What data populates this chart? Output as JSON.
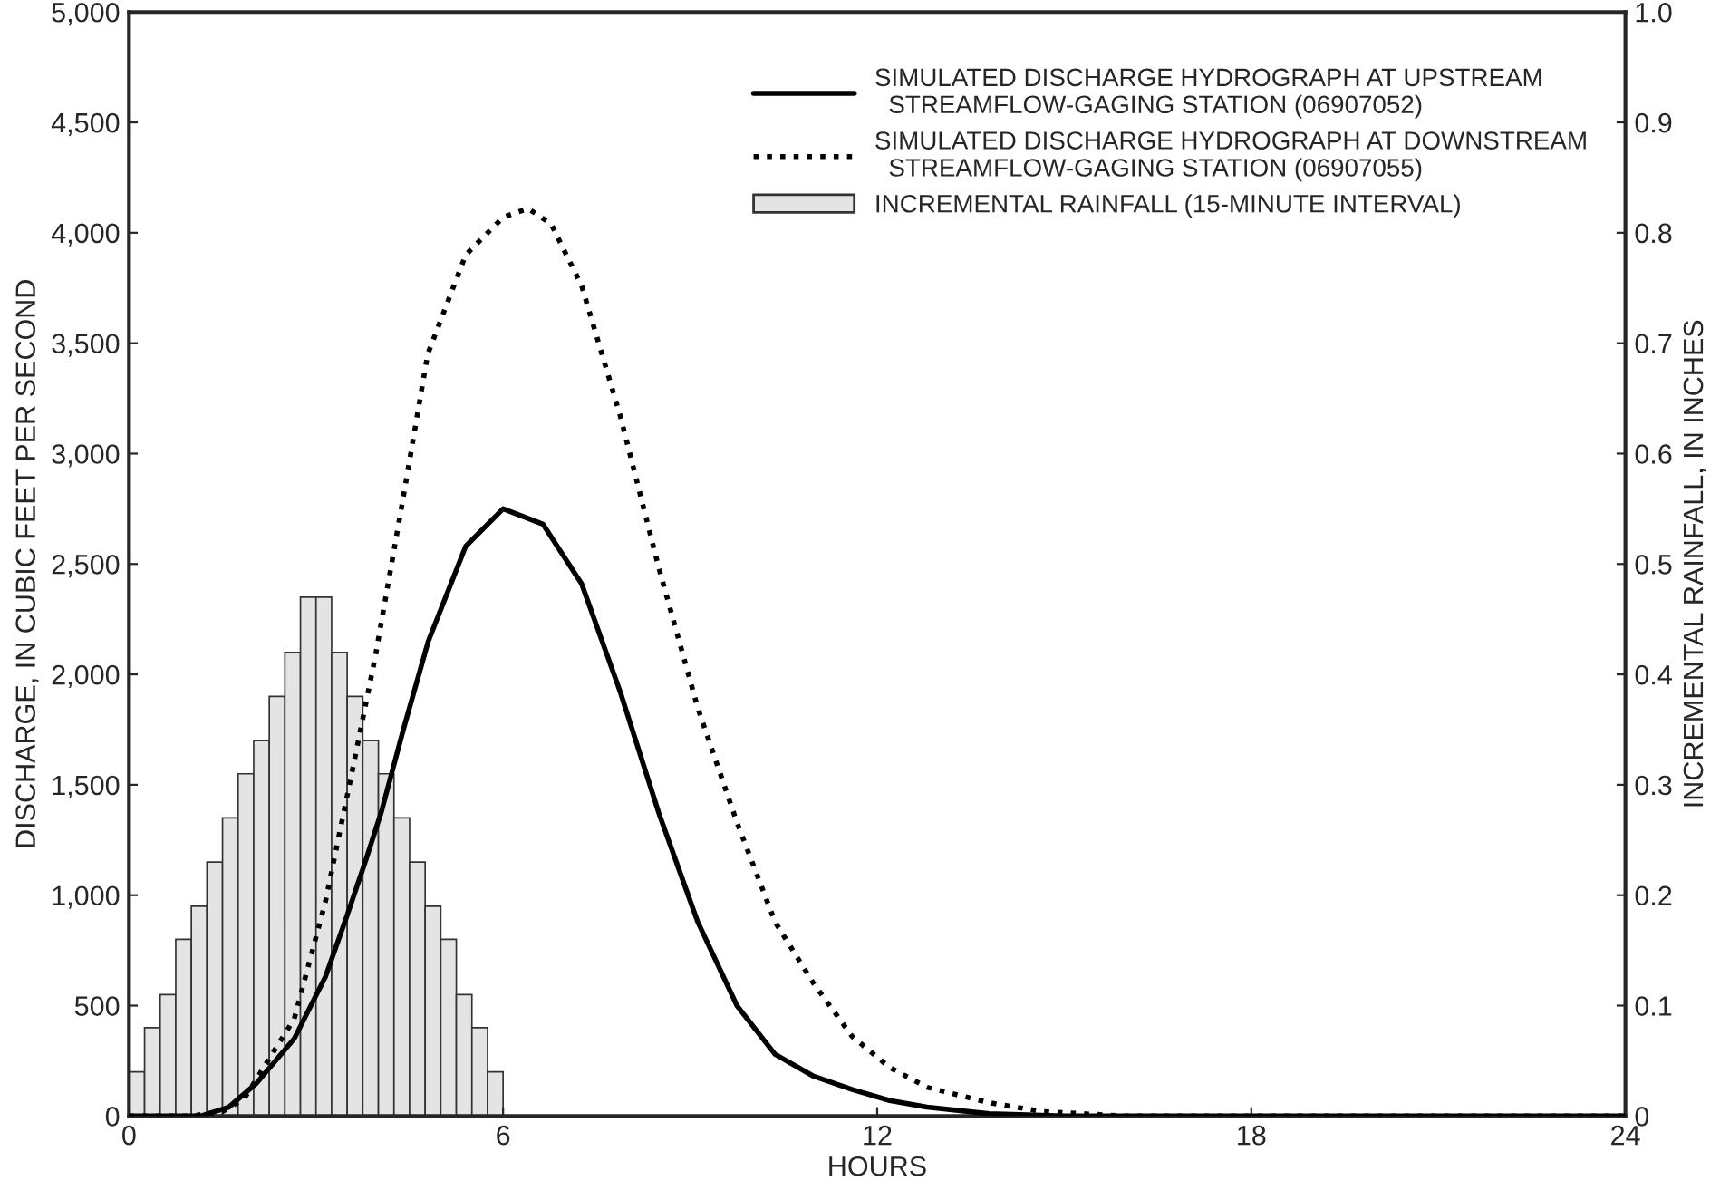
{
  "chart_data": {
    "type": "line",
    "xlabel": "HOURS",
    "ylabel": "DISCHARGE, IN CUBIC FEET PER SECOND",
    "y2label": "INCREMENTAL RAINFALL, IN INCHES",
    "xlim": [
      0,
      24
    ],
    "xticks": [
      0,
      6,
      12,
      18,
      24
    ],
    "ylim": [
      0,
      5000
    ],
    "yticks": [
      0,
      {
        "value": 500,
        "label": "500"
      },
      {
        "value": 1000,
        "label": "1,000"
      },
      {
        "value": 1500,
        "label": "1,500"
      },
      {
        "value": 2000,
        "label": "2,000"
      },
      {
        "value": 2500,
        "label": "2,500"
      },
      {
        "value": 3000,
        "label": "3,000"
      },
      {
        "value": 3500,
        "label": "3,500"
      },
      {
        "value": 4000,
        "label": "4,000"
      },
      {
        "value": 4500,
        "label": "4,500"
      },
      {
        "value": 5000,
        "label": "5,000"
      }
    ],
    "y2lim": [
      0,
      1.0
    ],
    "y2ticks": [
      0,
      0.1,
      0.2,
      0.3,
      0.4,
      0.5,
      0.6,
      0.7,
      0.8,
      0.9,
      {
        "value": 1.0,
        "label": "1.0"
      }
    ],
    "legend": "top right",
    "grid": false,
    "marker": "none",
    "series": [
      {
        "name": "SIMULATED DISCHARGE HYDROGRAPH AT UPSTREAM\n  STREAMFLOW-GAGING STATION (06907052)",
        "color": "#000000",
        "line_style": "solid",
        "x": [
          0,
          0.5,
          1.15,
          1.6,
          2.05,
          2.65,
          3.15,
          3.5,
          3.8,
          4.05,
          4.4,
          4.8,
          5.4,
          6,
          6.64,
          7.26,
          7.88,
          8.5,
          9.12,
          9.75,
          10.36,
          10.98,
          11.6,
          12.2,
          12.8,
          13.8,
          15,
          24
        ],
        "values": [
          0,
          0,
          0,
          40,
          150,
          350,
          630,
          910,
          1160,
          1380,
          1750,
          2150,
          2580,
          2750,
          2680,
          2410,
          1920,
          1370,
          880,
          500,
          280,
          180,
          120,
          70,
          40,
          10,
          0,
          0
        ]
      },
      {
        "name": "SIMULATED DISCHARGE HYDROGRAPH AT DOWNSTREAM\n  STREAMFLOW-GAGING STATION (06907055)",
        "color": "#000000",
        "line_style": "dotted",
        "x": [
          0,
          1.0,
          1.5,
          1.85,
          2.65,
          3.15,
          3.55,
          3.95,
          4.41,
          4.79,
          5.4,
          6,
          6.4,
          6.77,
          7.26,
          7.88,
          8.5,
          9.12,
          9.75,
          10.36,
          10.98,
          11.6,
          12.2,
          12.8,
          13.8,
          14.65,
          16,
          17,
          24
        ],
        "values": [
          0,
          0,
          20,
          80,
          440,
          970,
          1520,
          2080,
          2820,
          3450,
          3900,
          4070,
          4110,
          4040,
          3760,
          3170,
          2480,
          1850,
          1330,
          880,
          600,
          360,
          220,
          130,
          60,
          20,
          0,
          0,
          0
        ]
      },
      {
        "type": "bar",
        "axis": "y2",
        "name": "INCREMENTAL RAINFALL (15-MINUTE INTERVAL)",
        "color": "#e4e4e4",
        "x": [
          0.125,
          0.375,
          0.625,
          0.875,
          1.125,
          1.375,
          1.625,
          1.875,
          2.125,
          2.375,
          2.625,
          2.875,
          3.125,
          3.375,
          3.625,
          3.875,
          4.125,
          4.375,
          4.625,
          4.875,
          5.125,
          5.375,
          5.625,
          5.875
        ],
        "values": [
          0.04,
          0.08,
          0.11,
          0.16,
          0.19,
          0.23,
          0.27,
          0.31,
          0.34,
          0.38,
          0.42,
          0.47,
          0.47,
          0.42,
          0.38,
          0.34,
          0.31,
          0.27,
          0.23,
          0.19,
          0.16,
          0.11,
          0.08,
          0.04
        ]
      }
    ]
  }
}
